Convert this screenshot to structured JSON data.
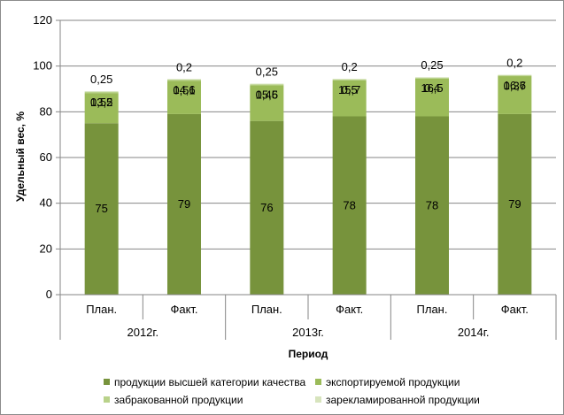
{
  "chart_data": {
    "type": "bar",
    "stacked": true,
    "categories": [
      "План.",
      "Факт.",
      "План.",
      "Факт.",
      "План.",
      "Факт."
    ],
    "groups": [
      "2012г.",
      "2013г.",
      "2014г."
    ],
    "series": [
      {
        "name": "продукции высшей категории качества",
        "color": "#77933c",
        "values": [
          75,
          79,
          76,
          78,
          78,
          79
        ],
        "labels": [
          "75",
          "79",
          "76",
          "78",
          "78",
          "79"
        ]
      },
      {
        "name": "экспортируемой продукции",
        "color": "#9bbb59",
        "values": [
          13.2,
          14.6,
          15.6,
          15.7,
          16.5,
          16.6
        ],
        "labels": [
          "13,2",
          "14,6",
          "15,6",
          "15,7",
          "16,5",
          "16,6"
        ]
      },
      {
        "name": "забракованной продукции",
        "color": "#b9d28a",
        "values": [
          0.55,
          0.51,
          0.45,
          0.5,
          0.4,
          0.37
        ],
        "labels": [
          "0,55",
          "0,51",
          "0,45",
          "0,5",
          "0,4",
          "0,37"
        ]
      },
      {
        "name": "зарекламированной продукции",
        "color": "#d7e4bd",
        "values": [
          0.25,
          0.2,
          0.25,
          0.2,
          0.25,
          0.2
        ],
        "labels": [
          "0,25",
          "0,2",
          "0,25",
          "0,2",
          "0,25",
          "0,2"
        ]
      }
    ],
    "xlabel": "Период",
    "ylabel": "Удельный вес, %",
    "ylim": [
      0,
      120
    ],
    "yticks": [
      0,
      20,
      40,
      60,
      80,
      100,
      120
    ],
    "grid": true,
    "legend_position": "bottom"
  }
}
